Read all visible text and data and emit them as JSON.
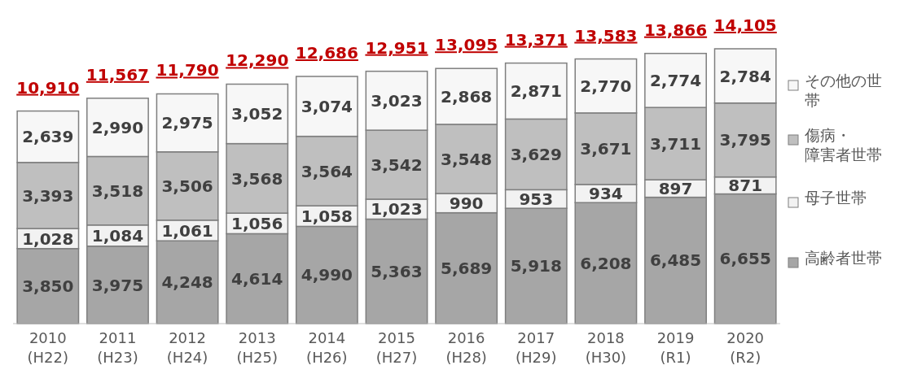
{
  "chart_data": {
    "type": "bar",
    "stacked": true,
    "legend": "right",
    "categories": [
      "2010\n(H22)",
      "2011\n(H23)",
      "2012\n(H24)",
      "2013\n(H25)",
      "2014\n(H26)",
      "2015\n(H27)",
      "2016\n(H28)",
      "2017\n(H29)",
      "2018\n(H30)",
      "2019\n(R1)",
      "2020\n(R2)"
    ],
    "series": [
      {
        "name": "高齢者世帯",
        "color": "#a6a6a6",
        "values": [
          3850,
          3975,
          4248,
          4614,
          4990,
          5363,
          5689,
          5918,
          6208,
          6485,
          6655
        ],
        "value_labels": [
          "3,850",
          "3,975",
          "4,248",
          "4,614",
          "4,990",
          "5,363",
          "5,689",
          "5,918",
          "6,208",
          "6,485",
          "6,655"
        ]
      },
      {
        "name": "母子世帯",
        "color": "#f2f2f2",
        "values": [
          1028,
          1084,
          1061,
          1056,
          1058,
          1023,
          990,
          953,
          934,
          897,
          871
        ],
        "value_labels": [
          "1,028",
          "1,084",
          "1,061",
          "1,056",
          "1,058",
          "1,023",
          "990",
          "953",
          "934",
          "897",
          "871"
        ]
      },
      {
        "name": "傷病・障害者世帯",
        "color": "#bfbfbf",
        "values": [
          3393,
          3518,
          3506,
          3568,
          3564,
          3542,
          3548,
          3629,
          3671,
          3711,
          3795
        ],
        "value_labels": [
          "3,393",
          "3,518",
          "3,506",
          "3,568",
          "3,564",
          "3,542",
          "3,548",
          "3,629",
          "3,671",
          "3,711",
          "3,795"
        ]
      },
      {
        "name": "その他の世帯",
        "color": "#f7f7f7",
        "values": [
          2639,
          2990,
          2975,
          3052,
          3074,
          3023,
          2868,
          2871,
          2770,
          2774,
          2784
        ],
        "value_labels": [
          "2,639",
          "2,990",
          "2,975",
          "3,052",
          "3,074",
          "3,023",
          "2,868",
          "2,871",
          "2,770",
          "2,774",
          "2,784"
        ]
      }
    ],
    "totals": [
      "10,910",
      "11,567",
      "11,790",
      "12,290",
      "12,686",
      "12,951",
      "13,095",
      "13,371",
      "13,583",
      "13,866",
      "14,105"
    ]
  }
}
